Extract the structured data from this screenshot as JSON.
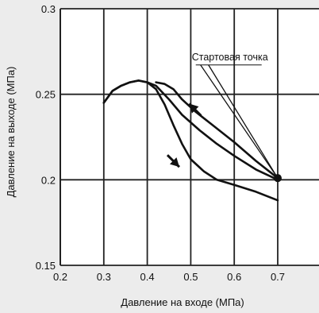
{
  "chart_data": {
    "type": "line",
    "title": "",
    "xlabel": "Давление на входе (МПа)",
    "ylabel": "Давление на выходе (МПа)",
    "xlim": [
      0.2,
      0.7
    ],
    "ylim": [
      0.15,
      0.3
    ],
    "x_ticks": [
      "0.2",
      "0.3",
      "0.4",
      "0.5",
      "0.6",
      "0.7"
    ],
    "y_ticks": [
      "0.15",
      "0.2",
      "0.25",
      "0.3"
    ],
    "grid": true,
    "series": [
      {
        "x": [
          0.3,
          0.32,
          0.34,
          0.36,
          0.38,
          0.4,
          0.42,
          0.45,
          0.48,
          0.52,
          0.56,
          0.6,
          0.65,
          0.7
        ],
        "y": [
          0.245,
          0.252,
          0.255,
          0.257,
          0.258,
          0.257,
          0.255,
          0.247,
          0.238,
          0.229,
          0.221,
          0.214,
          0.206,
          0.2
        ]
      },
      {
        "x": [
          0.3,
          0.32,
          0.34,
          0.36,
          0.38,
          0.4,
          0.42,
          0.44,
          0.46,
          0.48,
          0.5,
          0.53,
          0.56,
          0.6,
          0.65,
          0.7
        ],
        "y": [
          0.245,
          0.252,
          0.255,
          0.257,
          0.258,
          0.257,
          0.253,
          0.244,
          0.232,
          0.221,
          0.212,
          0.205,
          0.2,
          0.197,
          0.193,
          0.188
        ]
      },
      {
        "x": [
          0.42,
          0.44,
          0.46,
          0.48,
          0.51,
          0.55,
          0.6,
          0.65,
          0.7
        ],
        "y": [
          0.257,
          0.256,
          0.253,
          0.247,
          0.24,
          0.232,
          0.222,
          0.211,
          0.201
        ]
      }
    ],
    "start_point": {
      "x": 0.7,
      "y": 0.201
    },
    "direction_arrows": [
      {
        "x": 0.51,
        "y": 0.241,
        "dx": -1,
        "dy": 1
      },
      {
        "x": 0.46,
        "y": 0.211,
        "dx": 1,
        "dy": -1
      }
    ],
    "annotations": [
      {
        "text": "Стартовая точка",
        "x": 0.59,
        "y": 0.269,
        "pointer_to": {
          "x": 0.7,
          "y": 0.201
        }
      }
    ]
  },
  "colors": {
    "background": "#ececec",
    "plot_background": "#ffffff",
    "grid": "#222222",
    "line": "#111111",
    "text": "#111111"
  }
}
